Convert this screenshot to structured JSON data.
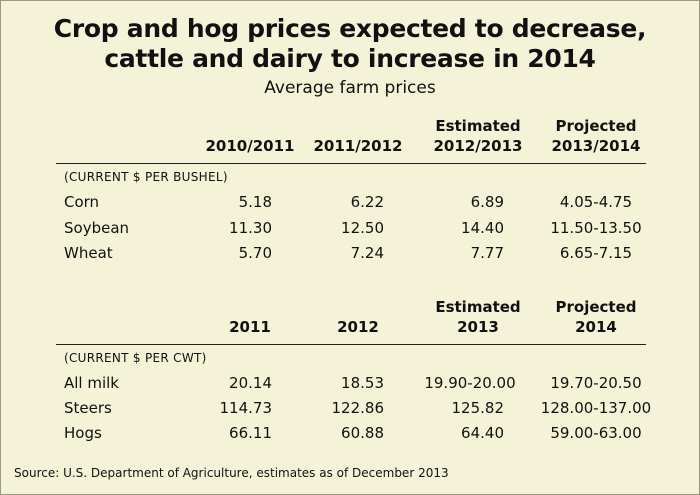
{
  "title_line1": "Crop and hog prices expected to decrease,",
  "title_line2": "cattle and dairy to increase in 2014",
  "subtitle": "Average farm prices",
  "source": "Source: U.S. Department of Agriculture, estimates as of December 2013",
  "chart_data": [
    {
      "type": "table",
      "unit_label": "(CURRENT $ PER BUSHEL)",
      "columns": [
        {
          "line1": "",
          "line2": "2010/2011"
        },
        {
          "line1": "",
          "line2": "2011/2012"
        },
        {
          "line1": "Estimated",
          "line2": "2012/2013"
        },
        {
          "line1": "Projected",
          "line2": "2013/2014"
        }
      ],
      "rows": [
        {
          "label": "Corn",
          "values": [
            "5.18",
            "6.22",
            "6.89",
            "4.05-4.75"
          ]
        },
        {
          "label": "Soybean",
          "values": [
            "11.30",
            "12.50",
            "14.40",
            "11.50-13.50"
          ]
        },
        {
          "label": "Wheat",
          "values": [
            "5.70",
            "7.24",
            "7.77",
            "6.65-7.15"
          ]
        }
      ]
    },
    {
      "type": "table",
      "unit_label": "(CURRENT $ PER CWT)",
      "columns": [
        {
          "line1": "",
          "line2": "2011"
        },
        {
          "line1": "",
          "line2": "2012"
        },
        {
          "line1": "Estimated",
          "line2": "2013"
        },
        {
          "line1": "Projected",
          "line2": "2014"
        }
      ],
      "rows": [
        {
          "label": "All milk",
          "values": [
            "20.14",
            "18.53",
            "19.90-20.00",
            "19.70-20.50"
          ]
        },
        {
          "label": "Steers",
          "values": [
            "114.73",
            "122.86",
            "125.82",
            "128.00-137.00"
          ]
        },
        {
          "label": "Hogs",
          "values": [
            "66.11",
            "60.88",
            "64.40",
            "59.00-63.00"
          ]
        }
      ]
    }
  ]
}
